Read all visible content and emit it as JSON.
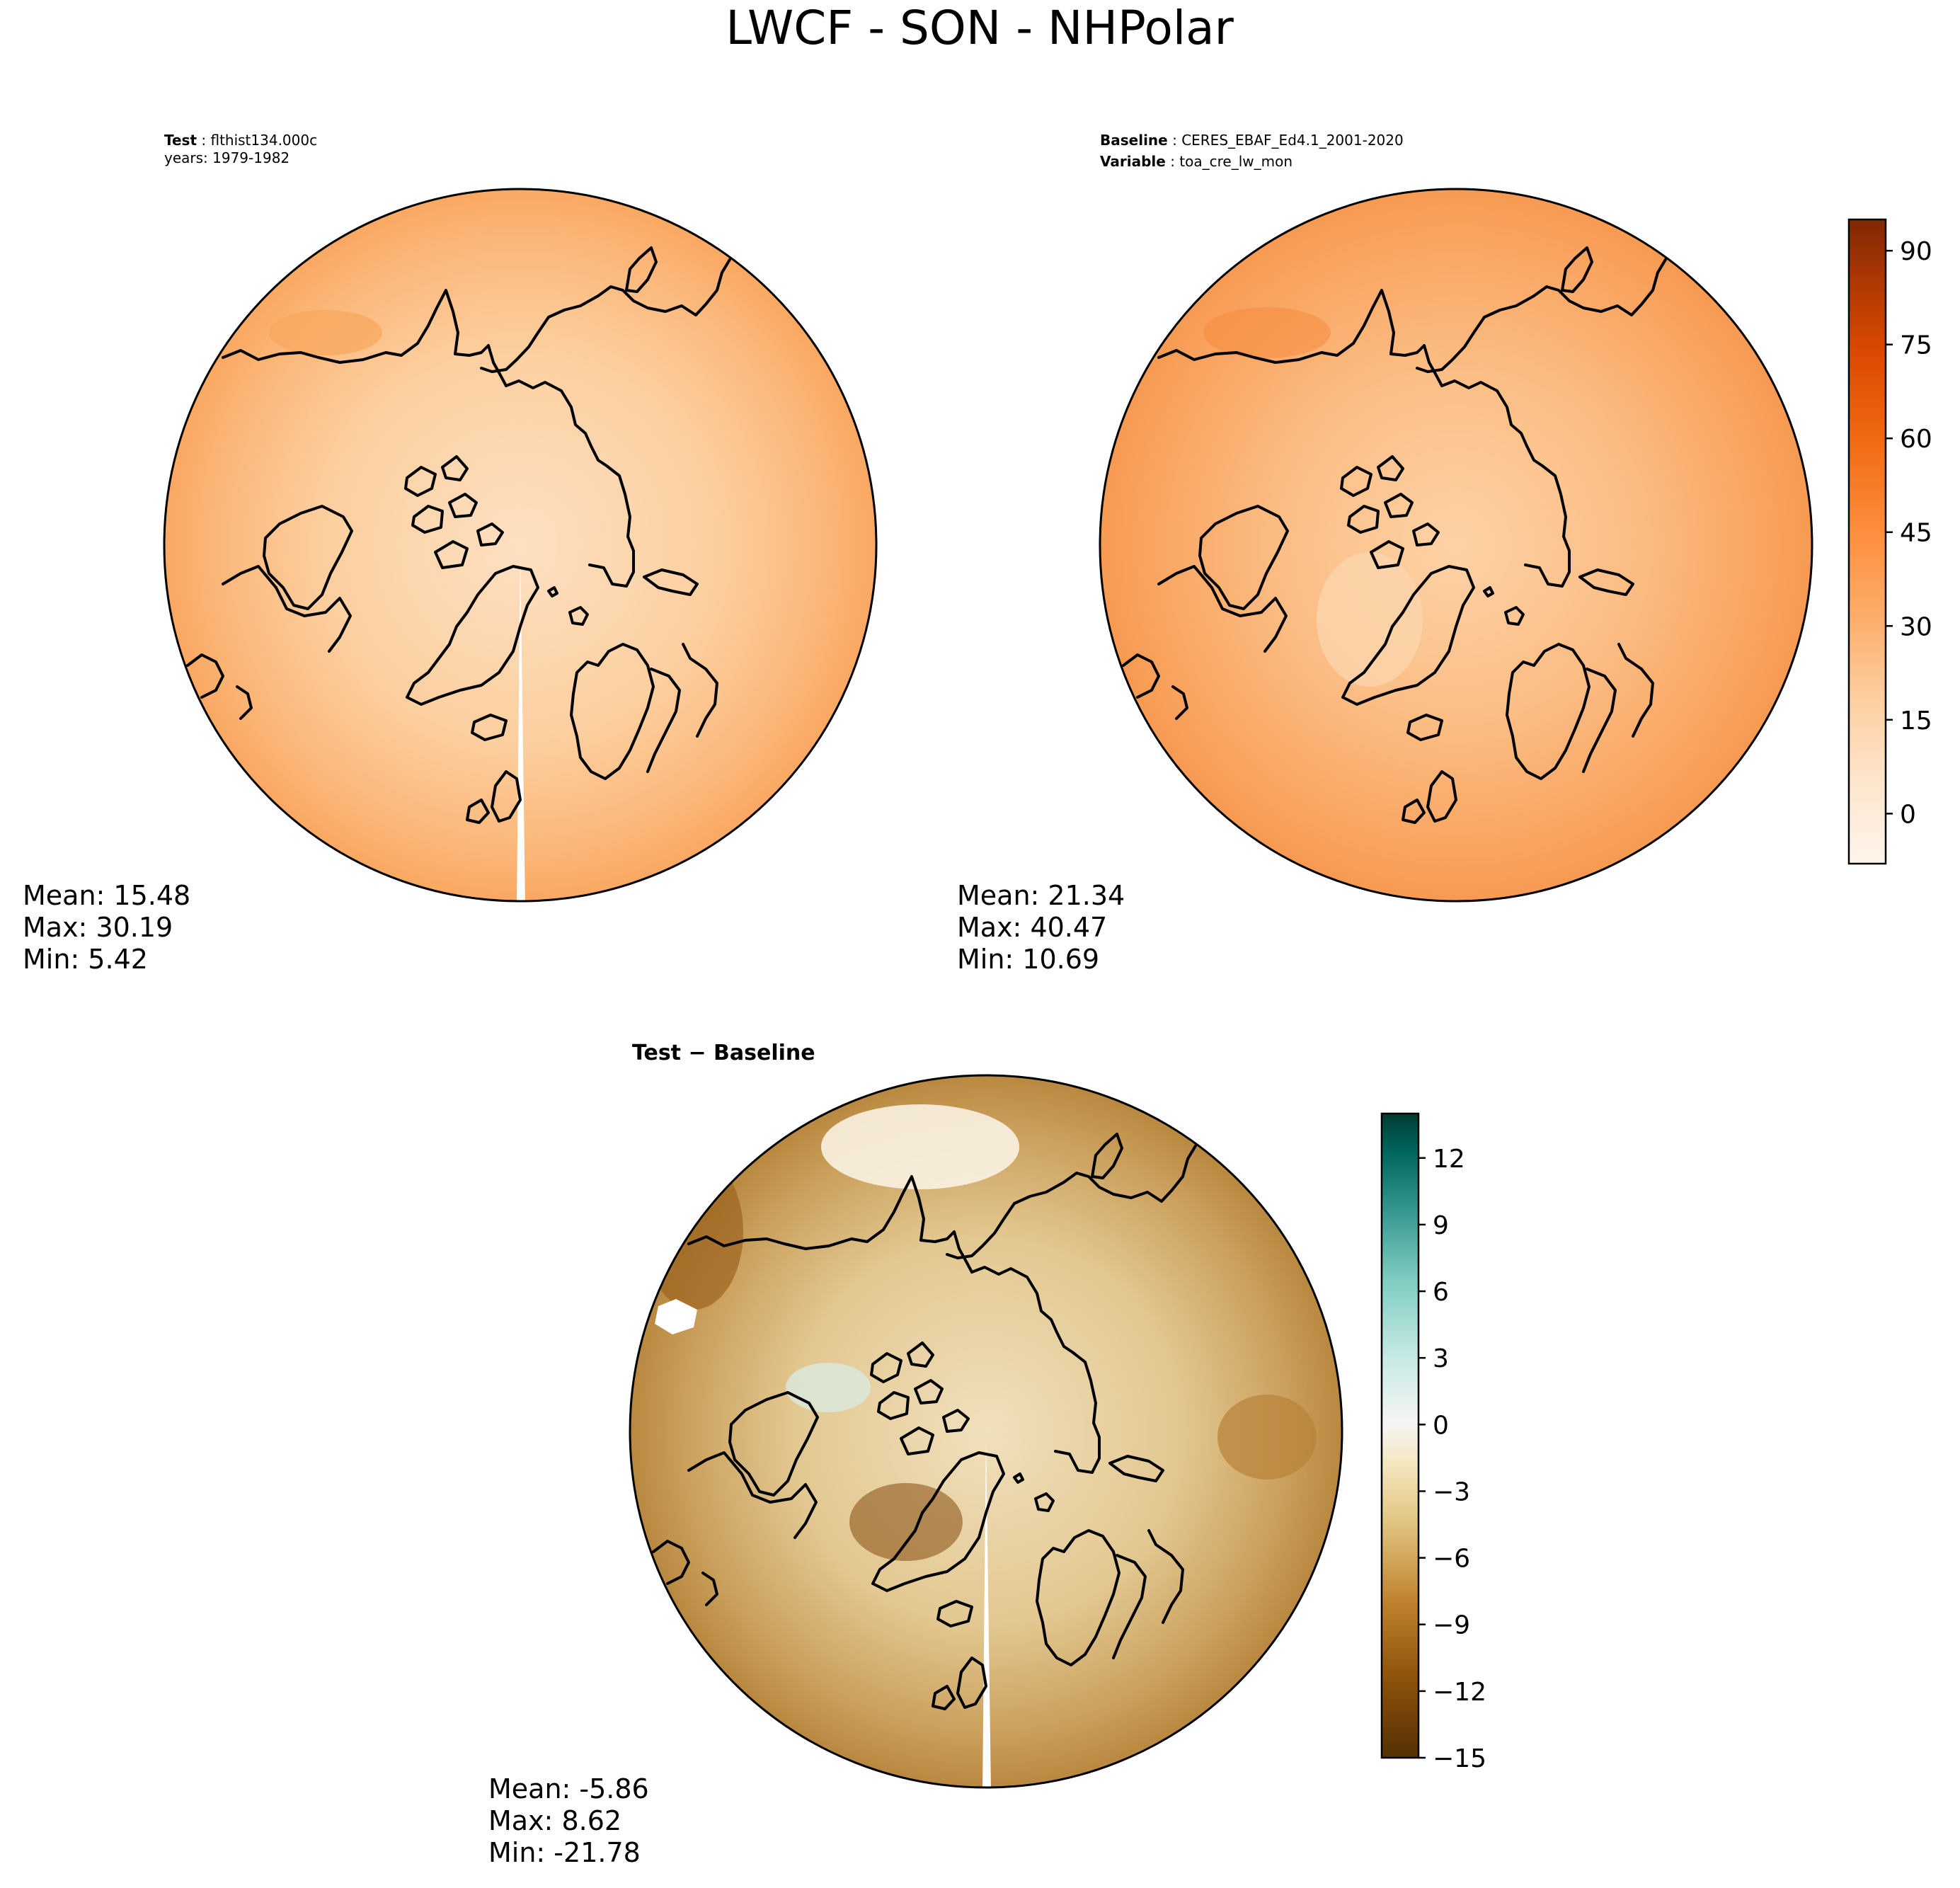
{
  "title": "LWCF - SON - NHPolar",
  "colors": {
    "orange_scale": [
      "#fff5eb",
      "#fee6ce",
      "#fdd0a2",
      "#fdae6b",
      "#fd8d3c",
      "#f16913",
      "#d94801",
      "#a63603",
      "#7f2704"
    ],
    "diff_scale": [
      "#543005",
      "#8c510a",
      "#bf812d",
      "#dfc27d",
      "#f6e8c3",
      "#f5f5f5",
      "#c7eae5",
      "#80cdc1",
      "#35978f",
      "#01665e",
      "#003c30"
    ],
    "test_land": "#fbe2c6",
    "baseline_land": "#fcd6ae"
  },
  "panels": {
    "test": {
      "header_lines": [
        {
          "key": "Test",
          "value": "flthist134.000c"
        },
        {
          "key": "",
          "value": "years: 1979-1982"
        }
      ],
      "stats": {
        "mean": "Mean: 15.48",
        "max": "Max: 30.19",
        "min": "Min:  5.42"
      }
    },
    "baseline": {
      "header_lines": [
        {
          "key": "Baseline",
          "value": "CERES_EBAF_Ed4.1_2001-2020"
        },
        {
          "key": "Variable",
          "value": "toa_cre_lw_mon"
        }
      ],
      "stats": {
        "mean": "Mean: 21.34",
        "max": "Max: 40.47",
        "min": "Min: 10.69"
      }
    },
    "diff": {
      "header": "Test − Baseline",
      "stats": {
        "mean": "Mean: -5.86",
        "max": "Max:  8.62",
        "min": "Min: -21.78"
      }
    }
  },
  "colorbars": {
    "main": {
      "vmin": -8,
      "vmax": 95,
      "ticks": [
        0,
        15,
        30,
        45,
        60,
        75,
        90
      ],
      "tick_labels": [
        "0",
        "15",
        "30",
        "45",
        "60",
        "75",
        "90"
      ]
    },
    "diff": {
      "vmin": -15,
      "vmax": 14,
      "ticks": [
        -15,
        -12,
        -9,
        -6,
        -3,
        0,
        3,
        6,
        9,
        12
      ],
      "tick_labels": [
        "−15",
        "−12",
        "−9",
        "−6",
        "−3",
        "0",
        "3",
        "6",
        "9",
        "12"
      ]
    }
  }
}
